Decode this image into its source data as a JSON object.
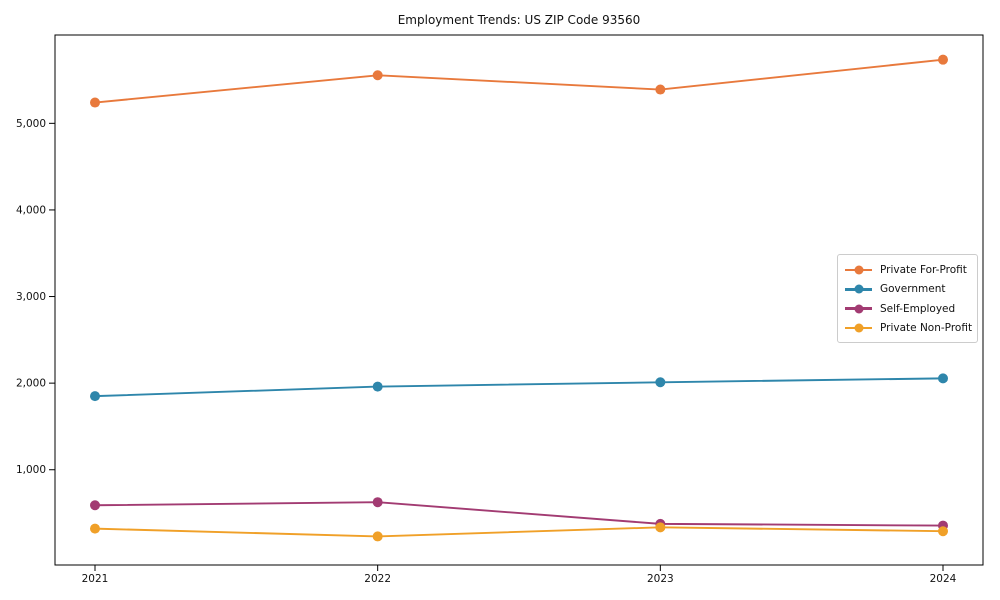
{
  "chart_data": {
    "type": "line",
    "title": "Employment Trends: US ZIP Code 93560",
    "categories": [
      "2021",
      "2022",
      "2023",
      "2024"
    ],
    "series": [
      {
        "name": "Private For-Profit",
        "color": "#E8793C",
        "values": [
          5240,
          5555,
          5390,
          5735
        ]
      },
      {
        "name": "Government",
        "color": "#2E86AB",
        "values": [
          1850,
          1960,
          2010,
          2055
        ]
      },
      {
        "name": "Self-Employed",
        "color": "#A23B72",
        "values": [
          590,
          625,
          375,
          355
        ]
      },
      {
        "name": "Private Non-Profit",
        "color": "#F0A028",
        "values": [
          320,
          230,
          335,
          290
        ]
      }
    ],
    "xlabel": "",
    "ylabel": "",
    "ylim": [
      -100,
      6020
    ],
    "yticks": [
      1000,
      2000,
      3000,
      4000,
      5000
    ],
    "ytick_labels": [
      "1,000",
      "2,000",
      "3,000",
      "4,000",
      "5,000"
    ],
    "grid": false,
    "marker": "o",
    "line_width": 1.9,
    "marker_radius": 5,
    "legend_position": "center right",
    "axis_color": "#000000",
    "tick_label_color": "#111111"
  }
}
